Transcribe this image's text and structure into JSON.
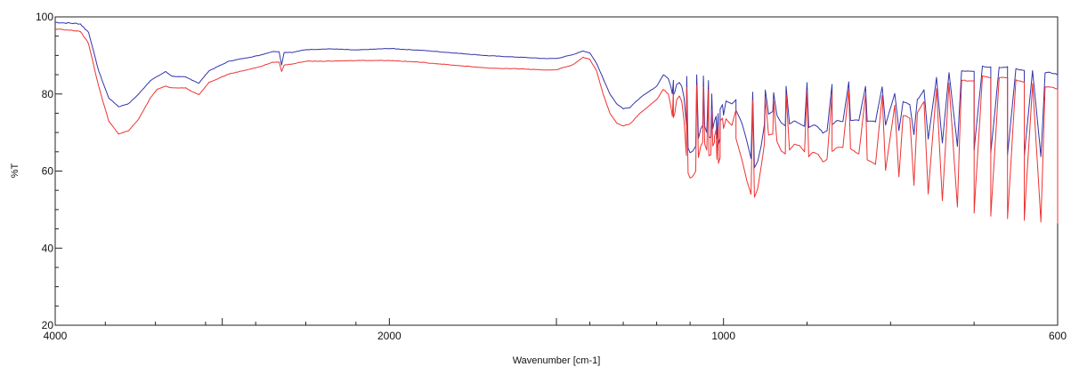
{
  "chart_data": {
    "type": "line",
    "title": "",
    "xlabel": "Wavenumber [cm-1]",
    "ylabel": "%T",
    "x_axis": {
      "reversed": true,
      "range": [
        4000,
        600
      ],
      "scale": "piecewise-linear",
      "scale_breaks": [
        4000,
        2000,
        1000,
        600
      ],
      "tick_labels": [
        "4000",
        "2000",
        "1000",
        "600"
      ]
    },
    "y_axis": {
      "range": [
        20,
        100
      ],
      "tick_labels": [
        "20",
        "40",
        "60",
        "80",
        "100"
      ]
    },
    "grid": false,
    "legend": "none",
    "series": [
      {
        "color": "#3333aa",
        "points": [
          [
            4000,
            98.6
          ],
          [
            3850,
            98.2
          ],
          [
            3800,
            96
          ],
          [
            3740,
            86
          ],
          [
            3680,
            79
          ],
          [
            3620,
            76.7
          ],
          [
            3560,
            77.5
          ],
          [
            3500,
            80
          ],
          [
            3430,
            83.5
          ],
          [
            3390,
            84.5
          ],
          [
            3340,
            85.8
          ],
          [
            3300,
            84.6
          ],
          [
            3220,
            84.4
          ],
          [
            3180,
            83.6
          ],
          [
            3140,
            82.8
          ],
          [
            3080,
            86
          ],
          [
            2960,
            88.5
          ],
          [
            2780,
            90
          ],
          [
            2700,
            91
          ],
          [
            2660,
            91
          ],
          [
            2645,
            87.5
          ],
          [
            2630,
            90.8
          ],
          [
            2580,
            90.8
          ],
          [
            2500,
            91.5
          ],
          [
            2350,
            91.7
          ],
          [
            2200,
            91.4
          ],
          [
            2000,
            91.8
          ],
          [
            1900,
            91.3
          ],
          [
            1800,
            90.6
          ],
          [
            1700,
            89.9
          ],
          [
            1600,
            89.5
          ],
          [
            1540,
            89.2
          ],
          [
            1500,
            89.2
          ],
          [
            1450,
            90.2
          ],
          [
            1420,
            91.2
          ],
          [
            1400,
            90.6
          ],
          [
            1380,
            88
          ],
          [
            1360,
            84
          ],
          [
            1340,
            80
          ],
          [
            1320,
            77.5
          ],
          [
            1300,
            76.2
          ],
          [
            1280,
            76.5
          ],
          [
            1250,
            79
          ],
          [
            1200,
            82
          ],
          [
            1150,
            83.6
          ],
          [
            1110,
            84.5
          ],
          [
            1080,
            85
          ],
          [
            1060,
            84.7
          ],
          [
            1045,
            83.5
          ],
          [
            1035,
            80
          ],
          [
            1027,
            73
          ],
          [
            1020,
            68.5
          ],
          [
            1015,
            67
          ],
          [
            1010,
            68.5
          ],
          [
            1000,
            74.5
          ],
          [
            985,
            78.5
          ],
          [
            965,
            80.5
          ],
          [
            950,
            81
          ],
          [
            940,
            80.3
          ],
          [
            925,
            82
          ],
          [
            900,
            83
          ],
          [
            870,
            82.6
          ],
          [
            850,
            83
          ],
          [
            830,
            82
          ],
          [
            810,
            82
          ],
          [
            795,
            80
          ],
          [
            785,
            78
          ],
          [
            777,
            77.3
          ],
          [
            768,
            78.5
          ],
          [
            760,
            81
          ],
          [
            745,
            84.2
          ],
          [
            730,
            85.5
          ],
          [
            715,
            86
          ],
          [
            700,
            86
          ],
          [
            690,
            87.2
          ],
          [
            680,
            87
          ],
          [
            670,
            86.8
          ],
          [
            660,
            87
          ],
          [
            650,
            86.5
          ],
          [
            640,
            86
          ],
          [
            630,
            86
          ],
          [
            615,
            85.6
          ],
          [
            605,
            85.4
          ],
          [
            600,
            85
          ],
          [
            1180,
            85
          ],
          [
            1165,
            84
          ],
          [
            1158,
            82
          ],
          [
            1153,
            80
          ],
          [
            1150,
            79.8
          ],
          [
            1146,
            80.5
          ],
          [
            1140,
            82.5
          ],
          [
            1132,
            83
          ],
          [
            1125,
            82
          ],
          [
            1118,
            79
          ],
          [
            1111,
            72
          ],
          [
            1106,
            66
          ],
          [
            1100,
            64.8
          ],
          [
            1092,
            65.2
          ],
          [
            1083,
            66.5
          ],
          [
            1075,
            68.5
          ],
          [
            1068,
            71
          ],
          [
            1062,
            71.9
          ],
          [
            1056,
            71.5
          ],
          [
            1050,
            70
          ],
          [
            1044,
            68.8
          ],
          [
            1038,
            68.7
          ],
          [
            1032,
            71
          ],
          [
            1027,
            73
          ],
          [
            1022,
            74.2
          ],
          [
            1016,
            74.9
          ],
          [
            1010,
            76
          ],
          [
            1003,
            77.3
          ],
          [
            997,
            78.2
          ],
          [
            990,
            77.4
          ],
          [
            985,
            75.8
          ],
          [
            978,
            72.5
          ],
          [
            972,
            67.8
          ],
          [
            967,
            63.2
          ],
          [
            963,
            60.9
          ],
          [
            959,
            62.5
          ],
          [
            955,
            66.5
          ],
          [
            951,
            72
          ],
          [
            946,
            74.8
          ],
          [
            941,
            75.4
          ],
          [
            936,
            74.5
          ],
          [
            931,
            72.5
          ],
          [
            926,
            71.7
          ],
          [
            921,
            72.2
          ],
          [
            915,
            73
          ],
          [
            909,
            72.3
          ],
          [
            903,
            71.6
          ],
          [
            898,
            71.3
          ],
          [
            893,
            72
          ],
          [
            887,
            71.5
          ],
          [
            881,
            69.9
          ],
          [
            876,
            70.4
          ],
          [
            870,
            72.2
          ],
          [
            864,
            73
          ],
          [
            857,
            73
          ],
          [
            848,
            73.3
          ],
          [
            838,
            73.2
          ],
          [
            828,
            73
          ],
          [
            818,
            72.8
          ],
          [
            806,
            72
          ],
          [
            790,
            70.6
          ],
          [
            772,
            69.5
          ],
          [
            755,
            68.2
          ],
          [
            738,
            67.2
          ],
          [
            720,
            66.5
          ],
          [
            700,
            65.5
          ],
          [
            680,
            64.8
          ],
          [
            660,
            64.2
          ],
          [
            640,
            63.8
          ],
          [
            620,
            63.6
          ],
          [
            600,
            63.3
          ]
        ]
      },
      {
        "color": "#ee3333",
        "points": [
          [
            4000,
            96.8
          ],
          [
            3850,
            96.3
          ],
          [
            3800,
            93
          ],
          [
            3740,
            82
          ],
          [
            3680,
            73
          ],
          [
            3620,
            69.6
          ],
          [
            3560,
            70.5
          ],
          [
            3500,
            73.5
          ],
          [
            3430,
            79
          ],
          [
            3390,
            81.2
          ],
          [
            3340,
            82
          ],
          [
            3300,
            81.6
          ],
          [
            3220,
            81.6
          ],
          [
            3180,
            80.6
          ],
          [
            3140,
            79.8
          ],
          [
            3080,
            83
          ],
          [
            2960,
            85.2
          ],
          [
            2780,
            87
          ],
          [
            2700,
            88.2
          ],
          [
            2660,
            88.3
          ],
          [
            2645,
            85.8
          ],
          [
            2630,
            87.5
          ],
          [
            2580,
            87.8
          ],
          [
            2500,
            88.5
          ],
          [
            2350,
            88.5
          ],
          [
            2200,
            88.7
          ],
          [
            2000,
            88.7
          ],
          [
            1900,
            88.2
          ],
          [
            1800,
            87.4
          ],
          [
            1700,
            86.7
          ],
          [
            1600,
            86.5
          ],
          [
            1540,
            86.2
          ],
          [
            1500,
            86.3
          ],
          [
            1450,
            87.6
          ],
          [
            1420,
            89.5
          ],
          [
            1400,
            89
          ],
          [
            1380,
            86
          ],
          [
            1360,
            80
          ],
          [
            1340,
            75
          ],
          [
            1320,
            72.5
          ],
          [
            1300,
            71.7
          ],
          [
            1280,
            72.2
          ],
          [
            1250,
            75
          ],
          [
            1200,
            78.5
          ],
          [
            1150,
            80.8
          ],
          [
            1110,
            81.8
          ],
          [
            1080,
            82.2
          ],
          [
            1060,
            82
          ],
          [
            1045,
            81
          ],
          [
            1035,
            76
          ],
          [
            1027,
            67.5
          ],
          [
            1020,
            63
          ],
          [
            1015,
            62
          ],
          [
            1010,
            63.5
          ],
          [
            1000,
            71
          ],
          [
            985,
            76
          ],
          [
            965,
            78.4
          ],
          [
            950,
            79
          ],
          [
            940,
            78.2
          ],
          [
            925,
            80
          ],
          [
            900,
            80.8
          ],
          [
            870,
            80.2
          ],
          [
            850,
            81
          ],
          [
            830,
            79.8
          ],
          [
            810,
            79.5
          ],
          [
            795,
            77
          ],
          [
            785,
            74.5
          ],
          [
            777,
            73.7
          ],
          [
            768,
            75
          ],
          [
            760,
            78
          ],
          [
            745,
            81.5
          ],
          [
            730,
            82.8
          ],
          [
            715,
            83.5
          ],
          [
            700,
            83.4
          ],
          [
            690,
            84.6
          ],
          [
            680,
            84.2
          ],
          [
            670,
            84.2
          ],
          [
            660,
            84.3
          ],
          [
            650,
            83.6
          ],
          [
            640,
            83
          ],
          [
            630,
            82.7
          ],
          [
            615,
            82
          ],
          [
            605,
            81.6
          ],
          [
            600,
            81.2
          ],
          [
            1180,
            81.2
          ],
          [
            1165,
            80
          ],
          [
            1158,
            77
          ],
          [
            1153,
            74.2
          ],
          [
            1150,
            73.8
          ],
          [
            1146,
            75
          ],
          [
            1140,
            78.5
          ],
          [
            1132,
            79.5
          ],
          [
            1125,
            78
          ],
          [
            1118,
            73
          ],
          [
            1111,
            64
          ],
          [
            1106,
            59.5
          ],
          [
            1100,
            58.2
          ],
          [
            1092,
            58.6
          ],
          [
            1083,
            60
          ],
          [
            1075,
            63.5
          ],
          [
            1068,
            66.5
          ],
          [
            1062,
            67.5
          ],
          [
            1056,
            67
          ],
          [
            1050,
            65.5
          ],
          [
            1044,
            64
          ],
          [
            1038,
            64.2
          ],
          [
            1032,
            66.5
          ],
          [
            1027,
            69
          ],
          [
            1022,
            70.7
          ],
          [
            1016,
            71.7
          ],
          [
            1010,
            73
          ],
          [
            1003,
            73.7
          ],
          [
            997,
            73.5
          ],
          [
            990,
            71.8
          ],
          [
            985,
            68.5
          ],
          [
            978,
            63
          ],
          [
            972,
            57.5
          ],
          [
            967,
            54
          ],
          [
            963,
            53.2
          ],
          [
            959,
            55.5
          ],
          [
            955,
            61
          ],
          [
            951,
            67
          ],
          [
            946,
            69.4
          ],
          [
            941,
            69.6
          ],
          [
            936,
            67.7
          ],
          [
            931,
            65.3
          ],
          [
            926,
            64.5
          ],
          [
            921,
            65.5
          ],
          [
            915,
            67
          ],
          [
            909,
            66.6
          ],
          [
            903,
            65
          ],
          [
            898,
            63.8
          ],
          [
            893,
            64.8
          ],
          [
            887,
            64.4
          ],
          [
            881,
            62.4
          ],
          [
            876,
            63
          ],
          [
            870,
            65.2
          ],
          [
            864,
            66
          ],
          [
            857,
            66.2
          ],
          [
            848,
            65.8
          ],
          [
            838,
            64.4
          ],
          [
            828,
            63
          ],
          [
            818,
            61.8
          ],
          [
            806,
            60.3
          ],
          [
            790,
            58.5
          ],
          [
            772,
            56.3
          ],
          [
            755,
            54.1
          ],
          [
            738,
            52.3
          ],
          [
            720,
            50.7
          ],
          [
            700,
            49.2
          ],
          [
            680,
            48.2
          ],
          [
            660,
            47.6
          ],
          [
            640,
            47.2
          ],
          [
            620,
            46.8
          ],
          [
            600,
            46.4
          ]
        ]
      }
    ]
  }
}
